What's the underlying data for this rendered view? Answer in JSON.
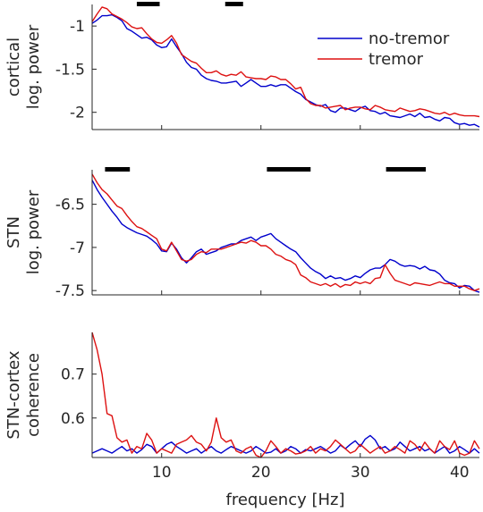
{
  "colors": {
    "no_tremor": "#0000cc",
    "tremor": "#dd1111",
    "axis": "#262626",
    "sig_bar": "#000000"
  },
  "legend": [
    {
      "label": "no-tremor",
      "color": "#0000cc"
    },
    {
      "label": "tremor",
      "color": "#dd1111"
    }
  ],
  "shared_x": {
    "label": "frequency [Hz]",
    "range": [
      3,
      42
    ],
    "ticks": [
      10,
      20,
      30,
      40
    ],
    "tick_labels": [
      "10",
      "20",
      "30",
      "40"
    ]
  },
  "chart_data": [
    {
      "type": "line",
      "ylabel": [
        "cortical",
        "log. power"
      ],
      "ylim": [
        -2.2,
        -0.75
      ],
      "yticks": [
        -1,
        -1.5,
        -2
      ],
      "ytick_labels": [
        "-1",
        "-1.5",
        "-2"
      ],
      "legend_position": "top-right",
      "significance_bars_hz": [
        [
          7.5,
          9.8
        ],
        [
          16.4,
          18.2
        ]
      ],
      "x": [
        3.0,
        3.5,
        4.0,
        4.5,
        5.0,
        5.5,
        6.0,
        6.5,
        7.0,
        7.5,
        8.0,
        8.5,
        9.0,
        9.5,
        10.0,
        10.5,
        11.0,
        11.5,
        12.0,
        12.5,
        13.0,
        13.5,
        14.0,
        14.5,
        15.0,
        15.5,
        16.0,
        16.5,
        17.0,
        17.5,
        18.0,
        18.5,
        19.0,
        19.5,
        20.0,
        20.5,
        21.0,
        21.5,
        22.0,
        22.5,
        23.0,
        23.5,
        24.0,
        24.5,
        25.0,
        25.5,
        26.0,
        26.5,
        27.0,
        27.5,
        28.0,
        28.5,
        29.0,
        29.5,
        30.0,
        30.5,
        31.0,
        31.5,
        32.0,
        32.5,
        33.0,
        33.5,
        34.0,
        34.5,
        35.0,
        35.5,
        36.0,
        36.5,
        37.0,
        37.5,
        38.0,
        38.5,
        39.0,
        39.5,
        40.0,
        40.5,
        41.0,
        41.5,
        42.0
      ],
      "series": [
        {
          "name": "no-tremor",
          "color": "#0000cc",
          "values": [
            -0.97,
            -0.93,
            -0.88,
            -0.88,
            -0.87,
            -0.9,
            -0.94,
            -1.03,
            -1.06,
            -1.1,
            -1.14,
            -1.13,
            -1.16,
            -1.22,
            -1.25,
            -1.24,
            -1.15,
            -1.24,
            -1.32,
            -1.42,
            -1.48,
            -1.5,
            -1.57,
            -1.61,
            -1.63,
            -1.64,
            -1.66,
            -1.66,
            -1.65,
            -1.64,
            -1.7,
            -1.66,
            -1.62,
            -1.66,
            -1.7,
            -1.7,
            -1.68,
            -1.7,
            -1.68,
            -1.68,
            -1.72,
            -1.76,
            -1.79,
            -1.85,
            -1.88,
            -1.91,
            -1.93,
            -1.91,
            -1.98,
            -2.0,
            -1.95,
            -1.95,
            -1.97,
            -1.99,
            -1.95,
            -1.93,
            -1.98,
            -1.99,
            -2.02,
            -2.0,
            -2.04,
            -2.05,
            -2.06,
            -2.04,
            -2.02,
            -2.05,
            -2.01,
            -2.06,
            -2.05,
            -2.08,
            -2.1,
            -2.06,
            -2.07,
            -2.12,
            -2.14,
            -2.13,
            -2.15,
            -2.14,
            -2.17
          ]
        },
        {
          "name": "tremor",
          "color": "#dd1111",
          "values": [
            -0.95,
            -0.86,
            -0.78,
            -0.8,
            -0.86,
            -0.89,
            -0.92,
            -0.96,
            -1.01,
            -1.03,
            -1.02,
            -1.09,
            -1.15,
            -1.19,
            -1.2,
            -1.16,
            -1.11,
            -1.2,
            -1.33,
            -1.37,
            -1.41,
            -1.43,
            -1.49,
            -1.54,
            -1.54,
            -1.52,
            -1.56,
            -1.58,
            -1.56,
            -1.57,
            -1.53,
            -1.59,
            -1.6,
            -1.61,
            -1.61,
            -1.62,
            -1.58,
            -1.59,
            -1.62,
            -1.62,
            -1.67,
            -1.73,
            -1.71,
            -1.84,
            -1.9,
            -1.92,
            -1.92,
            -1.95,
            -1.94,
            -1.93,
            -1.92,
            -1.97,
            -1.95,
            -1.94,
            -1.94,
            -1.96,
            -1.97,
            -1.92,
            -1.94,
            -1.97,
            -1.98,
            -1.99,
            -1.95,
            -1.97,
            -1.99,
            -1.98,
            -1.96,
            -1.97,
            -1.99,
            -2.01,
            -2.02,
            -2.0,
            -2.03,
            -2.01,
            -2.03,
            -2.04,
            -2.04,
            -2.04,
            -2.05
          ]
        }
      ]
    },
    {
      "type": "line",
      "ylabel": [
        "STN",
        "log. power"
      ],
      "ylim": [
        -7.55,
        -6.1
      ],
      "yticks": [
        -6.5,
        -7,
        -7.5
      ],
      "ytick_labels": [
        "-6.5",
        "-7",
        "-7.5"
      ],
      "significance_bars_hz": [
        [
          4.3,
          6.8
        ],
        [
          20.6,
          25.0
        ],
        [
          32.6,
          36.6
        ]
      ],
      "x": [
        3.0,
        3.5,
        4.0,
        4.5,
        5.0,
        5.5,
        6.0,
        6.5,
        7.0,
        7.5,
        8.0,
        8.5,
        9.0,
        9.5,
        10.0,
        10.5,
        11.0,
        11.5,
        12.0,
        12.5,
        13.0,
        13.5,
        14.0,
        14.5,
        15.0,
        15.5,
        16.0,
        16.5,
        17.0,
        17.5,
        18.0,
        18.5,
        19.0,
        19.5,
        20.0,
        20.5,
        21.0,
        21.5,
        22.0,
        22.5,
        23.0,
        23.5,
        24.0,
        24.5,
        25.0,
        25.5,
        26.0,
        26.5,
        27.0,
        27.5,
        28.0,
        28.5,
        29.0,
        29.5,
        30.0,
        30.5,
        31.0,
        31.5,
        32.0,
        32.5,
        33.0,
        33.5,
        34.0,
        34.5,
        35.0,
        35.5,
        36.0,
        36.5,
        37.0,
        37.5,
        38.0,
        38.5,
        39.0,
        39.5,
        40.0,
        40.5,
        41.0,
        41.5,
        42.0
      ],
      "series": [
        {
          "name": "no-tremor",
          "color": "#0000cc",
          "values": [
            -6.22,
            -6.33,
            -6.42,
            -6.5,
            -6.58,
            -6.65,
            -6.73,
            -6.77,
            -6.8,
            -6.83,
            -6.85,
            -6.87,
            -6.91,
            -6.96,
            -7.04,
            -7.05,
            -6.95,
            -7.02,
            -7.12,
            -7.18,
            -7.12,
            -7.05,
            -7.02,
            -7.08,
            -7.06,
            -7.04,
            -7.0,
            -6.98,
            -6.96,
            -6.96,
            -6.92,
            -6.9,
            -6.88,
            -6.92,
            -6.88,
            -6.86,
            -6.84,
            -6.9,
            -6.94,
            -6.98,
            -7.02,
            -7.05,
            -7.12,
            -7.18,
            -7.24,
            -7.28,
            -7.31,
            -7.36,
            -7.33,
            -7.36,
            -7.35,
            -7.38,
            -7.36,
            -7.33,
            -7.35,
            -7.3,
            -7.26,
            -7.24,
            -7.24,
            -7.2,
            -7.14,
            -7.16,
            -7.2,
            -7.22,
            -7.21,
            -7.22,
            -7.25,
            -7.22,
            -7.26,
            -7.27,
            -7.31,
            -7.38,
            -7.41,
            -7.42,
            -7.47,
            -7.44,
            -7.45,
            -7.5,
            -7.52
          ]
        },
        {
          "name": "tremor",
          "color": "#dd1111",
          "values": [
            -6.15,
            -6.25,
            -6.33,
            -6.38,
            -6.45,
            -6.52,
            -6.55,
            -6.63,
            -6.7,
            -6.76,
            -6.78,
            -6.82,
            -6.86,
            -6.9,
            -7.02,
            -7.04,
            -6.94,
            -7.04,
            -7.14,
            -7.16,
            -7.14,
            -7.08,
            -7.05,
            -7.06,
            -7.02,
            -7.02,
            -7.02,
            -7.0,
            -6.98,
            -6.96,
            -6.94,
            -6.95,
            -6.92,
            -6.94,
            -6.98,
            -6.98,
            -7.02,
            -7.08,
            -7.1,
            -7.14,
            -7.16,
            -7.2,
            -7.32,
            -7.35,
            -7.4,
            -7.42,
            -7.44,
            -7.42,
            -7.45,
            -7.42,
            -7.46,
            -7.43,
            -7.44,
            -7.4,
            -7.42,
            -7.4,
            -7.42,
            -7.36,
            -7.35,
            -7.2,
            -7.3,
            -7.38,
            -7.4,
            -7.42,
            -7.44,
            -7.41,
            -7.42,
            -7.43,
            -7.44,
            -7.42,
            -7.4,
            -7.42,
            -7.42,
            -7.45,
            -7.45,
            -7.45,
            -7.48,
            -7.5,
            -7.48
          ]
        }
      ]
    },
    {
      "type": "line",
      "ylabel": [
        "STN-cortex",
        "coherence"
      ],
      "ylim": [
        0.51,
        0.795
      ],
      "yticks": [
        0.6,
        0.7
      ],
      "ytick_labels": [
        "0.6",
        "0.7"
      ],
      "xlabel": "frequency [Hz]",
      "x": [
        3.0,
        3.5,
        4.0,
        4.5,
        5.0,
        5.5,
        6.0,
        6.5,
        7.0,
        7.5,
        8.0,
        8.5,
        9.0,
        9.5,
        10.0,
        10.5,
        11.0,
        11.5,
        12.0,
        12.5,
        13.0,
        13.5,
        14.0,
        14.5,
        15.0,
        15.5,
        16.0,
        16.5,
        17.0,
        17.5,
        18.0,
        18.5,
        19.0,
        19.5,
        20.0,
        20.5,
        21.0,
        21.5,
        22.0,
        22.5,
        23.0,
        23.5,
        24.0,
        24.5,
        25.0,
        25.5,
        26.0,
        26.5,
        27.0,
        27.5,
        28.0,
        28.5,
        29.0,
        29.5,
        30.0,
        30.5,
        31.0,
        31.5,
        32.0,
        32.5,
        33.0,
        33.5,
        34.0,
        34.5,
        35.0,
        35.5,
        36.0,
        36.5,
        37.0,
        37.5,
        38.0,
        38.5,
        39.0,
        39.5,
        40.0,
        40.5,
        41.0,
        41.5,
        42.0
      ],
      "series": [
        {
          "name": "no-tremor",
          "color": "#0000cc",
          "values": [
            0.52,
            0.525,
            0.53,
            0.525,
            0.52,
            0.528,
            0.535,
            0.525,
            0.53,
            0.52,
            0.528,
            0.54,
            0.535,
            0.52,
            0.53,
            0.54,
            0.545,
            0.535,
            0.528,
            0.52,
            0.525,
            0.53,
            0.52,
            0.528,
            0.535,
            0.525,
            0.52,
            0.528,
            0.535,
            0.53,
            0.525,
            0.52,
            0.525,
            0.535,
            0.528,
            0.52,
            0.522,
            0.53,
            0.52,
            0.525,
            0.535,
            0.53,
            0.52,
            0.528,
            0.525,
            0.53,
            0.535,
            0.528,
            0.52,
            0.525,
            0.538,
            0.53,
            0.54,
            0.548,
            0.535,
            0.552,
            0.56,
            0.55,
            0.53,
            0.535,
            0.525,
            0.53,
            0.545,
            0.535,
            0.525,
            0.53,
            0.535,
            0.525,
            0.53,
            0.52,
            0.528,
            0.535,
            0.52,
            0.525,
            0.535,
            0.528,
            0.52,
            0.53,
            0.52
          ]
        },
        {
          "name": "tremor",
          "color": "#dd1111",
          "values": [
            0.795,
            0.755,
            0.7,
            0.61,
            0.605,
            0.555,
            0.545,
            0.55,
            0.52,
            0.535,
            0.53,
            0.565,
            0.55,
            0.52,
            0.53,
            0.525,
            0.52,
            0.54,
            0.545,
            0.55,
            0.56,
            0.545,
            0.54,
            0.525,
            0.545,
            0.6,
            0.555,
            0.545,
            0.55,
            0.525,
            0.52,
            0.53,
            0.535,
            0.515,
            0.51,
            0.525,
            0.548,
            0.535,
            0.52,
            0.53,
            0.525,
            0.518,
            0.52,
            0.525,
            0.535,
            0.52,
            0.53,
            0.525,
            0.535,
            0.55,
            0.54,
            0.53,
            0.52,
            0.525,
            0.54,
            0.53,
            0.52,
            0.528,
            0.535,
            0.52,
            0.525,
            0.535,
            0.528,
            0.52,
            0.548,
            0.54,
            0.525,
            0.545,
            0.53,
            0.52,
            0.548,
            0.535,
            0.528,
            0.548,
            0.52,
            0.515,
            0.52,
            0.548,
            0.53
          ]
        }
      ]
    }
  ]
}
